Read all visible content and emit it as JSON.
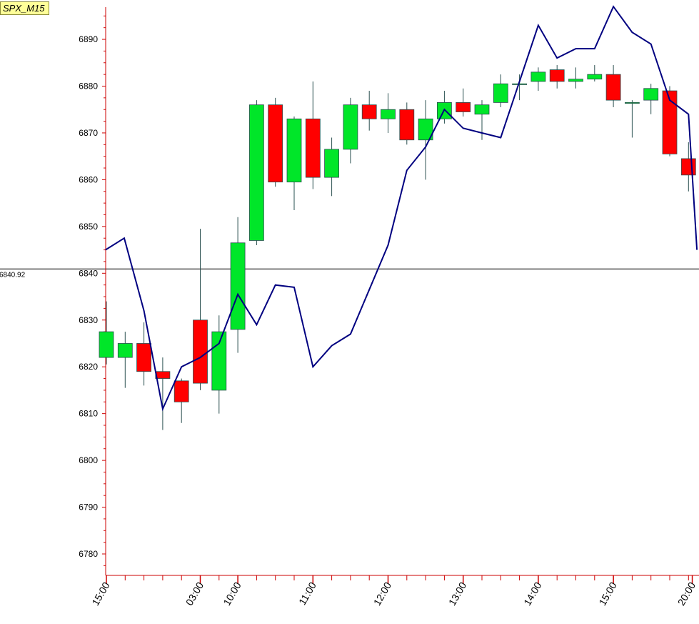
{
  "symbol": "SPX_M15",
  "colors": {
    "bull": "#00e629",
    "bear": "#ff0000",
    "candle_border": "#2a5050",
    "line": "#000080",
    "axis": "#cc0000",
    "hline": "#000000"
  },
  "chart_data": {
    "type": "candlestick",
    "ylim": [
      6775,
      6896
    ],
    "y_ticks": [
      6780,
      6790,
      6800,
      6810,
      6820,
      6830,
      6840,
      6850,
      6860,
      6870,
      6880,
      6890
    ],
    "x_labels": [
      "15:00",
      "03:00",
      "10:00",
      "11:00",
      "12:00",
      "13:00",
      "14:00",
      "15:00",
      "20:00"
    ],
    "x_label_index": [
      0,
      5,
      7,
      11,
      15,
      19,
      23,
      27,
      31.2
    ],
    "horizontal_line": {
      "value": 6840.92,
      "label": "6840.92"
    },
    "candles": [
      {
        "o": 6822.0,
        "h": 6834.0,
        "l": 6820.5,
        "c": 6827.5
      },
      {
        "o": 6822.0,
        "h": 6827.5,
        "l": 6815.5,
        "c": 6825.0
      },
      {
        "o": 6825.0,
        "h": 6829.5,
        "l": 6816.0,
        "c": 6819.0
      },
      {
        "o": 6819.0,
        "h": 6822.0,
        "l": 6806.5,
        "c": 6817.5
      },
      {
        "o": 6817.0,
        "h": 6817.5,
        "l": 6808.0,
        "c": 6812.5
      },
      {
        "o": 6830.0,
        "h": 6849.5,
        "l": 6815.0,
        "c": 6816.5
      },
      {
        "o": 6815.0,
        "h": 6831.0,
        "l": 6810.0,
        "c": 6827.5
      },
      {
        "o": 6828.0,
        "h": 6852.0,
        "l": 6823.0,
        "c": 6846.5
      },
      {
        "o": 6847.0,
        "h": 6877.0,
        "l": 6846.0,
        "c": 6876.0
      },
      {
        "o": 6876.0,
        "h": 6877.5,
        "l": 6858.5,
        "c": 6859.5
      },
      {
        "o": 6859.5,
        "h": 6873.5,
        "l": 6853.5,
        "c": 6873.0
      },
      {
        "o": 6873.0,
        "h": 6881.0,
        "l": 6858.0,
        "c": 6860.5
      },
      {
        "o": 6860.5,
        "h": 6869.0,
        "l": 6856.5,
        "c": 6866.5
      },
      {
        "o": 6866.5,
        "h": 6877.5,
        "l": 6863.5,
        "c": 6876.0
      },
      {
        "o": 6876.0,
        "h": 6879.0,
        "l": 6870.5,
        "c": 6873.0
      },
      {
        "o": 6873.0,
        "h": 6878.5,
        "l": 6870.0,
        "c": 6875.0
      },
      {
        "o": 6875.0,
        "h": 6876.5,
        "l": 6867.5,
        "c": 6868.5
      },
      {
        "o": 6868.5,
        "h": 6877.0,
        "l": 6860.0,
        "c": 6873.0
      },
      {
        "o": 6873.0,
        "h": 6879.0,
        "l": 6872.0,
        "c": 6876.5
      },
      {
        "o": 6876.5,
        "h": 6879.5,
        "l": 6873.5,
        "c": 6874.5
      },
      {
        "o": 6874.0,
        "h": 6877.0,
        "l": 6868.5,
        "c": 6876.0
      },
      {
        "o": 6876.5,
        "h": 6882.5,
        "l": 6875.5,
        "c": 6880.5
      },
      {
        "o": 6880.5,
        "h": 6882.5,
        "l": 6877.0,
        "c": 6880.5
      },
      {
        "o": 6881.0,
        "h": 6884.0,
        "l": 6879.0,
        "c": 6883.0
      },
      {
        "o": 6883.5,
        "h": 6884.5,
        "l": 6879.5,
        "c": 6881.0
      },
      {
        "o": 6881.0,
        "h": 6884.0,
        "l": 6879.5,
        "c": 6881.5
      },
      {
        "o": 6881.5,
        "h": 6884.5,
        "l": 6881.0,
        "c": 6882.5
      },
      {
        "o": 6882.5,
        "h": 6884.5,
        "l": 6875.5,
        "c": 6877.0
      },
      {
        "o": 6876.5,
        "h": 6877.0,
        "l": 6869.0,
        "c": 6876.5
      },
      {
        "o": 6877.0,
        "h": 6880.5,
        "l": 6874.0,
        "c": 6879.5
      },
      {
        "o": 6879.0,
        "h": 6880.0,
        "l": 6865.0,
        "c": 6865.5
      },
      {
        "o": 6864.5,
        "h": 6868.0,
        "l": 6857.5,
        "c": 6861.0
      }
    ],
    "line": {
      "x_index": [
        -0.05,
        0.95,
        2.0,
        3.0,
        4.0,
        5.0,
        6.0,
        7.0,
        8.0,
        9.0,
        10.0,
        11.0,
        12.0,
        13.0,
        14.0,
        15.0,
        16.0,
        17.0,
        18.0,
        19.0,
        20.0,
        21.0,
        22.0,
        23.0,
        24.0,
        25.0,
        26.0,
        27.0,
        28.0,
        29.0,
        30.0,
        31.0,
        31.45
      ],
      "values": [
        6845.0,
        6847.5,
        6832.0,
        6811.0,
        6820.0,
        6822.0,
        6825.0,
        6835.5,
        6829.0,
        6837.5,
        6837.0,
        6820.0,
        6824.5,
        6827.0,
        6836.5,
        6846.0,
        6862.0,
        6867.0,
        6875.0,
        6871.0,
        6870.0,
        6869.0,
        6881.0,
        6893.0,
        6886.0,
        6888.0,
        6888.0,
        6897.0,
        6891.5,
        6889.0,
        6877.0,
        6874.0,
        6845.0
      ]
    }
  }
}
